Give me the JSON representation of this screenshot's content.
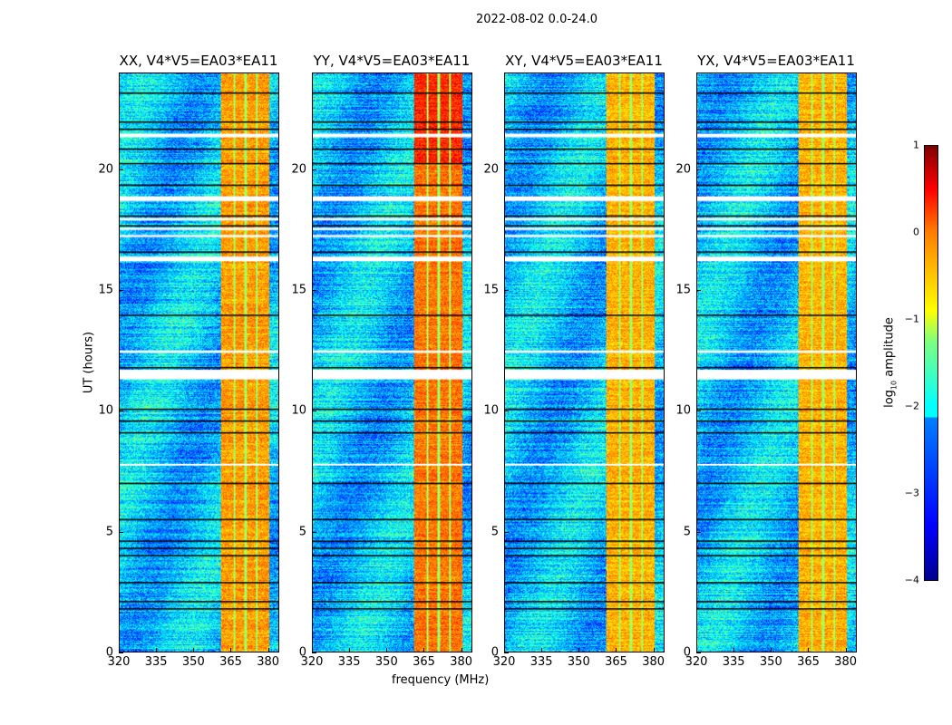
{
  "suptitle": "2022-08-02 0.0-24.0",
  "chart_data": {
    "type": "heatmap",
    "title": "2022-08-02 0.0-24.0",
    "xlabel": "frequency (MHz)",
    "ylabel": "UT (hours)",
    "xlim": [
      320,
      384.5
    ],
    "ylim": [
      0,
      24
    ],
    "xticks": [
      "320",
      "335",
      "350",
      "365",
      "380"
    ],
    "yticks": [
      "0",
      "5",
      "10",
      "15",
      "20"
    ],
    "panels": [
      {
        "title": "XX, V4*V5=EA03*EA11",
        "band_level": -0.4
      },
      {
        "title": "YY, V4*V5=EA03*EA11",
        "band_level": -0.2
      },
      {
        "title": "XY, V4*V5=EA03*EA11",
        "band_level": -0.5
      },
      {
        "title": "YX, V4*V5=EA03*EA11",
        "band_level": -0.5
      }
    ],
    "bright_band_mhz": [
      361,
      380.5
    ],
    "background_level": -2.4,
    "flagged_intervals_ut": [
      [
        21.35,
        21.5
      ],
      [
        18.7,
        18.9
      ],
      [
        17.9,
        18.0
      ],
      [
        17.5,
        17.6
      ],
      [
        17.2,
        17.3
      ],
      [
        16.2,
        16.4
      ],
      [
        12.4,
        12.5
      ],
      [
        11.3,
        11.7
      ],
      [
        7.75,
        7.8
      ]
    ],
    "black_lines_ut": [
      23.2,
      22.0,
      21.7,
      20.9,
      20.3,
      19.4,
      18.1,
      17.7,
      16.6,
      14.0,
      11.8,
      10.1,
      9.6,
      9.1,
      7.0,
      5.5,
      4.6,
      4.3,
      4.0,
      2.9,
      2.1,
      1.8
    ],
    "colorbar": {
      "label": "log10 amplitude",
      "label_base": "log",
      "label_sub": "10",
      "label_rest": " amplitude",
      "ticks": [
        "1",
        "0",
        "−1",
        "−2",
        "−3",
        "−4"
      ],
      "vmin": -4,
      "vmax": 1,
      "cmap": "jet"
    }
  }
}
